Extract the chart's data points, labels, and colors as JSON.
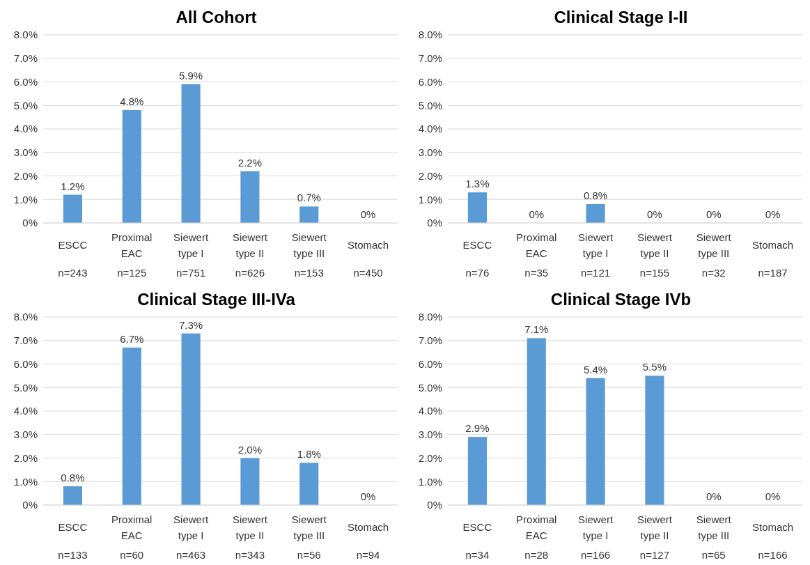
{
  "chart_data": [
    {
      "type": "bar",
      "title": "All Cohort",
      "categories": [
        "ESCC\nn=243",
        "Proximal EAC\nn=125",
        "Siewert type I\nn=751",
        "Siewert type II\nn=626",
        "Siewert type III\nn=153",
        "Stomach\nn=450"
      ],
      "values": [
        1.2,
        4.8,
        5.9,
        2.2,
        0.7,
        0
      ],
      "value_labels": [
        "1.2%",
        "4.8%",
        "5.9%",
        "2.2%",
        "0.7%",
        "0%"
      ],
      "color": "#5b9bd5",
      "ylim": [
        0,
        8
      ],
      "yticks": [
        {
          "value": 0,
          "label": "0%"
        },
        {
          "value": 1,
          "label": "1.0%"
        },
        {
          "value": 2,
          "label": "2.0%"
        },
        {
          "value": 3,
          "label": "3.0%"
        },
        {
          "value": 4,
          "label": "4.0%"
        },
        {
          "value": 5,
          "label": "5.0%"
        },
        {
          "value": 6,
          "label": "6.0%"
        },
        {
          "value": 7,
          "label": "7.0%"
        },
        {
          "value": 8,
          "label": "8.0%"
        }
      ],
      "grid": "y"
    },
    {
      "type": "bar",
      "title": "Clinical Stage I-II",
      "categories": [
        "ESCC\nn=76",
        "Proximal EAC\nn=35",
        "Siewert type I\nn=121",
        "Siewert type II\nn=155",
        "Siewert type III\nn=32",
        "Stomach\nn=187"
      ],
      "values": [
        1.3,
        0,
        0.8,
        0,
        0,
        0
      ],
      "value_labels": [
        "1.3%",
        "0%",
        "0.8%",
        "0%",
        "0%",
        "0%"
      ],
      "color": "#5b9bd5",
      "ylim": [
        0,
        8
      ],
      "yticks": [
        {
          "value": 0,
          "label": "0%"
        },
        {
          "value": 1,
          "label": "1.0%"
        },
        {
          "value": 2,
          "label": "2.0%"
        },
        {
          "value": 3,
          "label": "3.0%"
        },
        {
          "value": 4,
          "label": "4.0%"
        },
        {
          "value": 5,
          "label": "5.0%"
        },
        {
          "value": 6,
          "label": "6.0%"
        },
        {
          "value": 7,
          "label": "7.0%"
        },
        {
          "value": 8,
          "label": "8.0%"
        }
      ],
      "grid": "y"
    },
    {
      "type": "bar",
      "title": "Clinical Stage III-IVa",
      "categories": [
        "ESCC\nn=133",
        "Proximal EAC\nn=60",
        "Siewert type I\nn=463",
        "Siewert type II\nn=343",
        "Siewert type III\nn=56",
        "Stomach\nn=94"
      ],
      "values": [
        0.8,
        6.7,
        7.3,
        2.0,
        1.8,
        0
      ],
      "value_labels": [
        "0.8%",
        "6.7%",
        "7.3%",
        "2.0%",
        "1.8%",
        "0%"
      ],
      "color": "#5b9bd5",
      "ylim": [
        0,
        8
      ],
      "yticks": [
        {
          "value": 0,
          "label": "0%"
        },
        {
          "value": 1,
          "label": "1.0%"
        },
        {
          "value": 2,
          "label": "2.0%"
        },
        {
          "value": 3,
          "label": "3.0%"
        },
        {
          "value": 4,
          "label": "4.0%"
        },
        {
          "value": 5,
          "label": "5.0%"
        },
        {
          "value": 6,
          "label": "6.0%"
        },
        {
          "value": 7,
          "label": "7.0%"
        },
        {
          "value": 8,
          "label": "8.0%"
        }
      ],
      "grid": "y"
    },
    {
      "type": "bar",
      "title": "Clinical Stage IVb",
      "categories": [
        "ESCC\nn=34",
        "Proximal EAC\nn=28",
        "Siewert type I\nn=166",
        "Siewert type II\nn=127",
        "Siewert type III\nn=65",
        "Stomach\nn=166"
      ],
      "values": [
        2.9,
        7.1,
        5.4,
        5.5,
        0,
        0
      ],
      "value_labels": [
        "2.9%",
        "7.1%",
        "5.4%",
        "5.5%",
        "0%",
        "0%"
      ],
      "color": "#5b9bd5",
      "ylim": [
        0,
        8
      ],
      "yticks": [
        {
          "value": 0,
          "label": "0%"
        },
        {
          "value": 1,
          "label": "1.0%"
        },
        {
          "value": 2,
          "label": "2.0%"
        },
        {
          "value": 3,
          "label": "3.0%"
        },
        {
          "value": 4,
          "label": "4.0%"
        },
        {
          "value": 5,
          "label": "5.0%"
        },
        {
          "value": 6,
          "label": "6.0%"
        },
        {
          "value": 7,
          "label": "7.0%"
        },
        {
          "value": 8,
          "label": "8.0%"
        }
      ],
      "grid": "y"
    }
  ]
}
